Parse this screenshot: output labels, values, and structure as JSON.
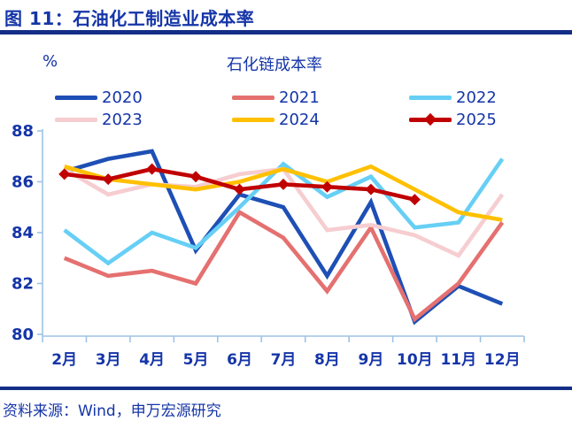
{
  "header": {
    "title": "图 11：石油化工制造业成本率"
  },
  "footer": {
    "source": "资料来源：Wind，申万宏源研究"
  },
  "chart": {
    "unit_label": "%",
    "subtitle": "石化链成本率"
  },
  "colors": {
    "text_blue": "#1535A8",
    "rule_navy": "#132E86",
    "axis_light_blue": "#9DC3E6"
  },
  "chart_data": {
    "type": "line",
    "title": "石化链成本率",
    "unit": "%",
    "categories": [
      "2月",
      "3月",
      "4月",
      "5月",
      "6月",
      "7月",
      "8月",
      "9月",
      "10月",
      "11月",
      "12月"
    ],
    "ylim": [
      80,
      88
    ],
    "yticks": [
      80,
      82,
      84,
      86,
      88
    ],
    "grid": false,
    "legend_position": "top",
    "series": [
      {
        "name": "2020",
        "color": "#1E4FB5",
        "marker": "none",
        "values": [
          86.4,
          86.9,
          87.2,
          83.3,
          85.5,
          85.0,
          82.3,
          85.2,
          80.5,
          81.9,
          81.2
        ]
      },
      {
        "name": "2021",
        "color": "#E57070",
        "marker": "none",
        "values": [
          83.0,
          82.3,
          82.5,
          82.0,
          84.8,
          83.8,
          81.7,
          84.2,
          80.6,
          82.0,
          84.4
        ]
      },
      {
        "name": "2022",
        "color": "#66CFF5",
        "marker": "none",
        "values": [
          84.1,
          82.8,
          84.0,
          83.4,
          85.0,
          86.7,
          85.4,
          86.2,
          84.2,
          84.4,
          86.9
        ]
      },
      {
        "name": "2023",
        "color": "#F6CDD0",
        "marker": "none",
        "values": [
          86.5,
          85.5,
          85.9,
          85.8,
          86.3,
          86.5,
          84.1,
          84.3,
          83.9,
          83.1,
          85.5
        ]
      },
      {
        "name": "2024",
        "color": "#FFC000",
        "marker": "none",
        "values": [
          86.6,
          86.1,
          85.9,
          85.7,
          86.0,
          86.5,
          86.0,
          86.6,
          85.7,
          84.8,
          84.5
        ]
      },
      {
        "name": "2025",
        "color": "#C00000",
        "marker": "diamond",
        "values": [
          86.3,
          86.1,
          86.5,
          86.2,
          85.7,
          85.9,
          85.8,
          85.7,
          85.3,
          null,
          null
        ]
      }
    ]
  }
}
